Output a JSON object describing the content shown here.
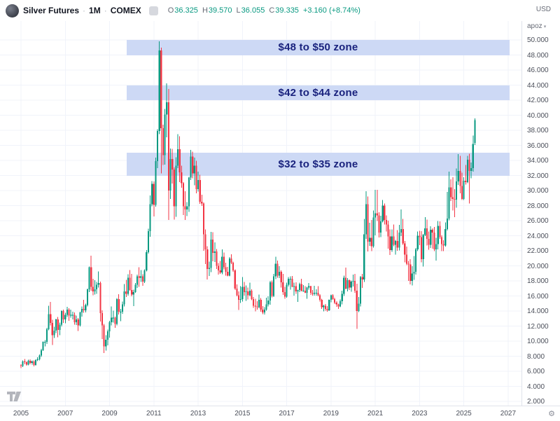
{
  "header": {
    "symbol": "Silver Futures",
    "dot": "·",
    "interval": "1M",
    "exchange": "COMEX",
    "ohlc": {
      "o_label": "O",
      "o": "36.325",
      "h_label": "H",
      "h": "39.570",
      "l_label": "L",
      "l": "36.055",
      "c_label": "C",
      "c": "39.335",
      "change": "+3.160 (+8.74%)"
    }
  },
  "price_axis": {
    "currency": "USD",
    "unit": "apoz",
    "ticks": [
      "50.000",
      "48.000",
      "46.000",
      "44.000",
      "42.000",
      "40.000",
      "38.000",
      "36.000",
      "34.000",
      "32.000",
      "30.000",
      "28.000",
      "26.000",
      "24.000",
      "22.000",
      "20.000",
      "18.000",
      "16.000",
      "14.000",
      "12.000",
      "10.000",
      "8.000",
      "6.000",
      "4.000",
      "2.000"
    ]
  },
  "time_axis": {
    "years": [
      "2005",
      "2007",
      "2009",
      "2011",
      "2013",
      "2015",
      "2017",
      "2019",
      "2021",
      "2023",
      "2025",
      "2027"
    ]
  },
  "zones": [
    {
      "label": "$48 to $50 zone",
      "price_from": 48,
      "price_to": 50
    },
    {
      "label": "$42 to $44 zone",
      "price_from": 42,
      "price_to": 44
    },
    {
      "label": "$32 to $35 zone",
      "price_from": 32,
      "price_to": 35
    }
  ],
  "colors": {
    "up": "#089981",
    "down": "#f23645",
    "zone_fill": "#cdd9f5",
    "zone_text": "#1a237e",
    "grid": "#f0f3fa",
    "axis_text": "#4a4e59",
    "border": "#e0e3eb"
  },
  "chart_data": {
    "type": "candlestick",
    "title": "Silver Futures · 1M · COMEX",
    "interval": "1 month",
    "start": "2005-01",
    "ylim": [
      1.5,
      52.5
    ],
    "ylabel": "USD (apoz)",
    "legend": "none",
    "grid": true,
    "candles": [
      [
        6.8,
        6.92,
        6.4,
        6.7
      ],
      [
        6.7,
        7.45,
        6.55,
        7.3
      ],
      [
        7.3,
        7.65,
        6.95,
        7.2
      ],
      [
        7.2,
        7.3,
        6.75,
        6.9
      ],
      [
        6.9,
        7.55,
        6.8,
        7.4
      ],
      [
        7.4,
        7.6,
        6.95,
        7.1
      ],
      [
        7.1,
        7.45,
        6.9,
        7.3
      ],
      [
        7.3,
        7.45,
        6.65,
        6.85
      ],
      [
        6.85,
        7.6,
        6.75,
        7.5
      ],
      [
        7.5,
        7.85,
        7.35,
        7.6
      ],
      [
        7.6,
        8.25,
        7.45,
        8.1
      ],
      [
        8.1,
        9.0,
        7.9,
        8.8
      ],
      [
        8.8,
        9.95,
        8.7,
        9.9
      ],
      [
        9.9,
        10.15,
        9.3,
        9.9
      ],
      [
        9.9,
        11.75,
        9.65,
        11.6
      ],
      [
        11.6,
        14.68,
        11.45,
        13.6
      ],
      [
        13.6,
        15.2,
        12.1,
        12.4
      ],
      [
        12.4,
        12.85,
        9.5,
        10.8
      ],
      [
        10.8,
        11.9,
        10.4,
        11.4
      ],
      [
        11.4,
        13.0,
        11.05,
        12.9
      ],
      [
        12.9,
        13.2,
        10.5,
        11.5
      ],
      [
        11.5,
        12.45,
        10.8,
        12.2
      ],
      [
        12.2,
        14.1,
        11.95,
        14.0
      ],
      [
        14.0,
        14.2,
        12.4,
        12.9
      ],
      [
        12.9,
        13.75,
        12.35,
        13.5
      ],
      [
        13.5,
        14.55,
        13.2,
        14.2
      ],
      [
        14.2,
        14.35,
        12.7,
        13.4
      ],
      [
        13.4,
        14.2,
        13.1,
        13.5
      ],
      [
        13.5,
        13.9,
        12.9,
        13.5
      ],
      [
        13.5,
        13.8,
        12.2,
        12.5
      ],
      [
        12.5,
        13.4,
        12.15,
        12.9
      ],
      [
        12.9,
        13.05,
        11.35,
        12.1
      ],
      [
        12.1,
        13.9,
        11.95,
        13.8
      ],
      [
        13.8,
        14.6,
        13.25,
        14.3
      ],
      [
        14.3,
        15.5,
        13.75,
        14.1
      ],
      [
        14.1,
        15.0,
        13.8,
        14.8
      ],
      [
        14.8,
        17.0,
        14.6,
        16.9
      ],
      [
        16.9,
        19.9,
        16.5,
        19.8
      ],
      [
        19.8,
        21.35,
        16.7,
        17.2
      ],
      [
        17.2,
        18.3,
        16.1,
        16.6
      ],
      [
        16.6,
        18.1,
        16.2,
        16.9
      ],
      [
        16.9,
        17.85,
        16.3,
        17.5
      ],
      [
        17.5,
        19.25,
        17.1,
        17.7
      ],
      [
        17.7,
        17.9,
        12.6,
        13.7
      ],
      [
        13.7,
        14.1,
        10.3,
        12.1
      ],
      [
        12.1,
        12.3,
        8.4,
        9.3
      ],
      [
        9.3,
        10.8,
        8.75,
        10.2
      ],
      [
        10.2,
        11.55,
        9.45,
        11.3
      ],
      [
        11.3,
        12.7,
        10.45,
        12.5
      ],
      [
        12.5,
        14.6,
        12.1,
        13.1
      ],
      [
        13.1,
        14.05,
        12.45,
        13.1
      ],
      [
        13.1,
        13.25,
        11.75,
        12.3
      ],
      [
        12.3,
        15.7,
        12.1,
        15.6
      ],
      [
        15.6,
        16.25,
        13.55,
        13.9
      ],
      [
        13.9,
        14.3,
        12.65,
        13.9
      ],
      [
        13.9,
        15.25,
        13.65,
        14.9
      ],
      [
        14.9,
        17.6,
        14.6,
        16.6
      ],
      [
        16.6,
        18.15,
        15.85,
        16.3
      ],
      [
        16.3,
        18.9,
        16.05,
        18.4
      ],
      [
        18.4,
        19.45,
        16.7,
        16.8
      ],
      [
        16.8,
        18.95,
        15.95,
        16.2
      ],
      [
        16.2,
        16.85,
        14.65,
        16.5
      ],
      [
        16.5,
        17.7,
        16.4,
        17.5
      ],
      [
        17.5,
        18.85,
        17.05,
        18.6
      ],
      [
        18.6,
        19.8,
        17.2,
        18.4
      ],
      [
        18.4,
        19.45,
        17.85,
        18.6
      ],
      [
        18.6,
        18.9,
        17.35,
        17.9
      ],
      [
        17.9,
        19.55,
        17.7,
        19.4
      ],
      [
        19.4,
        22.1,
        19.25,
        21.8
      ],
      [
        21.8,
        24.95,
        21.65,
        24.6
      ],
      [
        24.6,
        29.35,
        23.85,
        28.2
      ],
      [
        28.2,
        31.25,
        27.9,
        30.9
      ],
      [
        30.9,
        31.2,
        26.55,
        28.1
      ],
      [
        28.1,
        34.35,
        27.85,
        33.9
      ],
      [
        33.9,
        38.15,
        33.0,
        37.9
      ],
      [
        37.9,
        49.8,
        37.5,
        48.6
      ],
      [
        48.6,
        49.0,
        32.3,
        38.3
      ],
      [
        38.3,
        38.75,
        33.4,
        34.7
      ],
      [
        34.7,
        40.85,
        33.45,
        40.1
      ],
      [
        40.1,
        44.25,
        37.05,
        41.7
      ],
      [
        41.7,
        43.5,
        26.1,
        30.0
      ],
      [
        30.0,
        35.6,
        28.9,
        34.2
      ],
      [
        34.2,
        35.55,
        30.95,
        32.8
      ],
      [
        32.8,
        33.05,
        26.15,
        27.9
      ],
      [
        27.9,
        34.4,
        26.5,
        33.3
      ],
      [
        33.3,
        37.5,
        33.0,
        35.5
      ],
      [
        35.5,
        37.2,
        31.1,
        32.4
      ],
      [
        32.4,
        33.3,
        30.35,
        31.0
      ],
      [
        31.0,
        31.1,
        26.75,
        27.9
      ],
      [
        27.9,
        29.9,
        26.1,
        27.5
      ],
      [
        27.5,
        28.45,
        26.6,
        27.9
      ],
      [
        27.9,
        31.8,
        27.15,
        31.7
      ],
      [
        31.7,
        35.4,
        31.4,
        34.5
      ],
      [
        34.5,
        35.15,
        31.65,
        32.3
      ],
      [
        32.3,
        34.35,
        30.7,
        33.3
      ],
      [
        33.3,
        33.95,
        29.65,
        30.2
      ],
      [
        30.2,
        32.5,
        29.85,
        31.4
      ],
      [
        31.4,
        32.1,
        28.25,
        28.5
      ],
      [
        28.5,
        29.45,
        27.95,
        28.3
      ],
      [
        28.3,
        28.4,
        22.0,
        24.2
      ],
      [
        24.2,
        24.85,
        20.25,
        22.2
      ],
      [
        22.2,
        22.6,
        18.2,
        19.6
      ],
      [
        19.6,
        20.55,
        18.65,
        19.7
      ],
      [
        19.7,
        24.5,
        19.15,
        23.5
      ],
      [
        23.5,
        24.45,
        20.6,
        21.7
      ],
      [
        21.7,
        23.1,
        20.5,
        21.9
      ],
      [
        21.9,
        22.25,
        19.6,
        20.0
      ],
      [
        20.0,
        20.35,
        18.85,
        19.4
      ],
      [
        19.4,
        20.65,
        18.95,
        19.1
      ],
      [
        19.1,
        22.2,
        18.9,
        21.2
      ],
      [
        21.2,
        21.75,
        19.55,
        19.8
      ],
      [
        19.8,
        20.4,
        18.7,
        19.2
      ],
      [
        19.2,
        19.85,
        18.6,
        18.7
      ],
      [
        18.7,
        21.15,
        18.6,
        21.0
      ],
      [
        21.0,
        21.55,
        20.25,
        20.4
      ],
      [
        20.4,
        20.55,
        19.2,
        19.4
      ],
      [
        19.4,
        19.55,
        16.8,
        17.0
      ],
      [
        17.0,
        17.55,
        15.95,
        16.1
      ],
      [
        16.1,
        16.6,
        14.15,
        15.5
      ],
      [
        15.5,
        17.3,
        15.05,
        15.6
      ],
      [
        15.6,
        18.5,
        15.25,
        17.2
      ],
      [
        17.2,
        17.85,
        16.05,
        16.5
      ],
      [
        16.5,
        17.4,
        15.35,
        16.6
      ],
      [
        16.6,
        17.1,
        15.55,
        16.1
      ],
      [
        16.1,
        17.75,
        15.95,
        16.7
      ],
      [
        16.7,
        16.9,
        15.45,
        15.6
      ],
      [
        15.6,
        15.85,
        14.4,
        14.7
      ],
      [
        14.7,
        15.65,
        13.95,
        14.6
      ],
      [
        14.6,
        15.3,
        14.2,
        14.5
      ],
      [
        14.5,
        16.2,
        14.35,
        15.5
      ],
      [
        15.5,
        15.7,
        13.9,
        14.2
      ],
      [
        14.2,
        14.65,
        13.6,
        13.8
      ],
      [
        13.8,
        14.5,
        13.55,
        14.2
      ],
      [
        14.2,
        15.75,
        14.05,
        14.9
      ],
      [
        14.9,
        15.95,
        14.6,
        15.4
      ],
      [
        15.4,
        18.0,
        14.85,
        17.8
      ],
      [
        17.8,
        18.05,
        15.8,
        16.0
      ],
      [
        16.0,
        18.95,
        15.85,
        18.6
      ],
      [
        18.6,
        21.2,
        18.25,
        20.3
      ],
      [
        20.3,
        20.7,
        18.4,
        18.7
      ],
      [
        18.7,
        19.95,
        18.35,
        19.2
      ],
      [
        19.2,
        19.4,
        17.1,
        17.8
      ],
      [
        17.8,
        18.95,
        16.15,
        16.5
      ],
      [
        16.5,
        17.2,
        15.65,
        15.9
      ],
      [
        15.9,
        17.75,
        15.75,
        17.5
      ],
      [
        17.5,
        18.5,
        17.25,
        18.3
      ],
      [
        18.3,
        18.6,
        16.85,
        18.3
      ],
      [
        18.3,
        18.65,
        17.15,
        17.2
      ],
      [
        17.2,
        17.75,
        16.05,
        17.3
      ],
      [
        17.3,
        17.8,
        16.3,
        16.6
      ],
      [
        16.6,
        16.85,
        15.2,
        16.8
      ],
      [
        16.8,
        17.75,
        16.5,
        17.6
      ],
      [
        17.6,
        18.3,
        16.6,
        16.7
      ],
      [
        16.7,
        17.45,
        16.55,
        16.7
      ],
      [
        16.7,
        17.3,
        16.35,
        16.4
      ],
      [
        16.4,
        17.2,
        15.65,
        17.1
      ],
      [
        17.1,
        17.7,
        16.85,
        17.3
      ],
      [
        17.3,
        17.35,
        16.15,
        16.4
      ],
      [
        16.4,
        16.8,
        16.05,
        16.3
      ],
      [
        16.3,
        17.35,
        16.05,
        16.4
      ],
      [
        16.4,
        16.9,
        16.05,
        16.4
      ],
      [
        16.4,
        17.3,
        15.95,
        16.1
      ],
      [
        16.1,
        16.25,
        15.25,
        15.5
      ],
      [
        15.5,
        15.65,
        14.3,
        14.5
      ],
      [
        14.5,
        14.85,
        13.95,
        14.7
      ],
      [
        14.7,
        14.95,
        14.05,
        14.3
      ],
      [
        14.3,
        14.65,
        13.9,
        14.1
      ],
      [
        14.1,
        15.55,
        14.0,
        15.5
      ],
      [
        15.5,
        16.2,
        15.15,
        16.1
      ],
      [
        16.1,
        16.25,
        15.5,
        15.6
      ],
      [
        15.6,
        15.75,
        14.95,
        15.1
      ],
      [
        15.1,
        15.3,
        14.55,
        14.9
      ],
      [
        14.9,
        15.0,
        14.3,
        14.6
      ],
      [
        14.6,
        15.55,
        14.5,
        15.3
      ],
      [
        15.3,
        16.7,
        14.9,
        16.3
      ],
      [
        16.3,
        18.7,
        16.0,
        18.4
      ],
      [
        18.4,
        19.75,
        16.9,
        17.0
      ],
      [
        17.0,
        18.35,
        16.6,
        18.1
      ],
      [
        18.1,
        18.2,
        16.8,
        17.1
      ],
      [
        17.1,
        18.05,
        16.55,
        17.9
      ],
      [
        17.9,
        18.85,
        17.25,
        18.0
      ],
      [
        18.0,
        18.95,
        16.4,
        16.7
      ],
      [
        16.7,
        17.65,
        11.65,
        14.0
      ],
      [
        14.0,
        15.85,
        13.85,
        15.0
      ],
      [
        15.0,
        18.65,
        14.6,
        18.5
      ],
      [
        18.5,
        18.95,
        17.05,
        18.2
      ],
      [
        18.2,
        26.25,
        17.85,
        24.2
      ],
      [
        24.2,
        29.9,
        23.6,
        28.2
      ],
      [
        28.2,
        29.2,
        21.9,
        23.2
      ],
      [
        23.2,
        25.7,
        22.65,
        23.7
      ],
      [
        23.7,
        26.1,
        21.95,
        22.6
      ],
      [
        22.6,
        27.35,
        22.4,
        26.4
      ],
      [
        26.4,
        30.1,
        24.05,
        27.0
      ],
      [
        27.0,
        30.1,
        25.95,
        26.7
      ],
      [
        26.7,
        27.1,
        23.75,
        24.4
      ],
      [
        24.4,
        26.65,
        23.8,
        25.9
      ],
      [
        25.9,
        28.75,
        25.75,
        28.0
      ],
      [
        28.0,
        28.3,
        25.5,
        26.1
      ],
      [
        26.1,
        26.7,
        24.55,
        25.5
      ],
      [
        25.5,
        26.0,
        22.3,
        23.9
      ],
      [
        23.9,
        24.85,
        21.45,
        22.1
      ],
      [
        22.1,
        24.85,
        21.85,
        23.9
      ],
      [
        23.9,
        25.5,
        22.6,
        22.8
      ],
      [
        22.8,
        23.45,
        21.5,
        23.3
      ],
      [
        23.3,
        24.75,
        22.0,
        22.4
      ],
      [
        22.4,
        25.45,
        22.05,
        24.4
      ],
      [
        24.4,
        27.5,
        23.95,
        24.9
      ],
      [
        24.9,
        26.25,
        22.8,
        23.0
      ],
      [
        23.0,
        23.3,
        20.45,
        21.5
      ],
      [
        21.5,
        22.55,
        20.1,
        20.3
      ],
      [
        20.3,
        20.65,
        18.0,
        20.2
      ],
      [
        20.2,
        20.9,
        17.55,
        18.0
      ],
      [
        18.0,
        19.95,
        17.4,
        19.0
      ],
      [
        19.0,
        21.3,
        18.15,
        19.2
      ],
      [
        19.2,
        22.35,
        18.85,
        22.2
      ],
      [
        22.2,
        24.55,
        21.95,
        24.0
      ],
      [
        24.0,
        24.65,
        22.75,
        23.8
      ],
      [
        23.8,
        24.6,
        20.45,
        20.9
      ],
      [
        20.9,
        24.25,
        19.9,
        24.1
      ],
      [
        24.1,
        26.45,
        23.95,
        25.0
      ],
      [
        25.0,
        26.15,
        22.7,
        23.6
      ],
      [
        23.6,
        24.55,
        22.15,
        22.8
      ],
      [
        22.8,
        25.25,
        22.35,
        24.8
      ],
      [
        24.8,
        25.0,
        22.3,
        24.4
      ],
      [
        24.4,
        25.15,
        21.95,
        22.2
      ],
      [
        22.2,
        23.7,
        20.7,
        22.9
      ],
      [
        22.9,
        25.95,
        22.2,
        25.3
      ],
      [
        25.3,
        25.9,
        23.6,
        23.8
      ],
      [
        23.8,
        24.05,
        21.95,
        22.9
      ],
      [
        22.9,
        23.4,
        21.95,
        22.7
      ],
      [
        22.7,
        25.75,
        22.55,
        24.9
      ],
      [
        24.9,
        29.8,
        24.7,
        26.3
      ],
      [
        26.3,
        32.5,
        26.05,
        30.4
      ],
      [
        30.4,
        31.5,
        28.6,
        29.1
      ],
      [
        29.1,
        31.75,
        27.35,
        28.9
      ],
      [
        28.9,
        30.2,
        26.45,
        28.8
      ],
      [
        28.8,
        32.95,
        27.7,
        31.2
      ],
      [
        31.2,
        34.85,
        30.75,
        32.6
      ],
      [
        32.6,
        34.6,
        29.65,
        30.6
      ],
      [
        30.6,
        32.35,
        28.75,
        28.9
      ],
      [
        28.9,
        31.75,
        28.75,
        31.3
      ],
      [
        31.3,
        33.4,
        30.8,
        31.1
      ],
      [
        31.1,
        34.6,
        31.0,
        34.1
      ],
      [
        34.1,
        34.9,
        28.3,
        32.6
      ],
      [
        32.6,
        33.7,
        31.65,
        33.0
      ],
      [
        33.0,
        37.3,
        32.5,
        36.175
      ],
      [
        36.325,
        39.57,
        36.055,
        39.335
      ]
    ]
  }
}
